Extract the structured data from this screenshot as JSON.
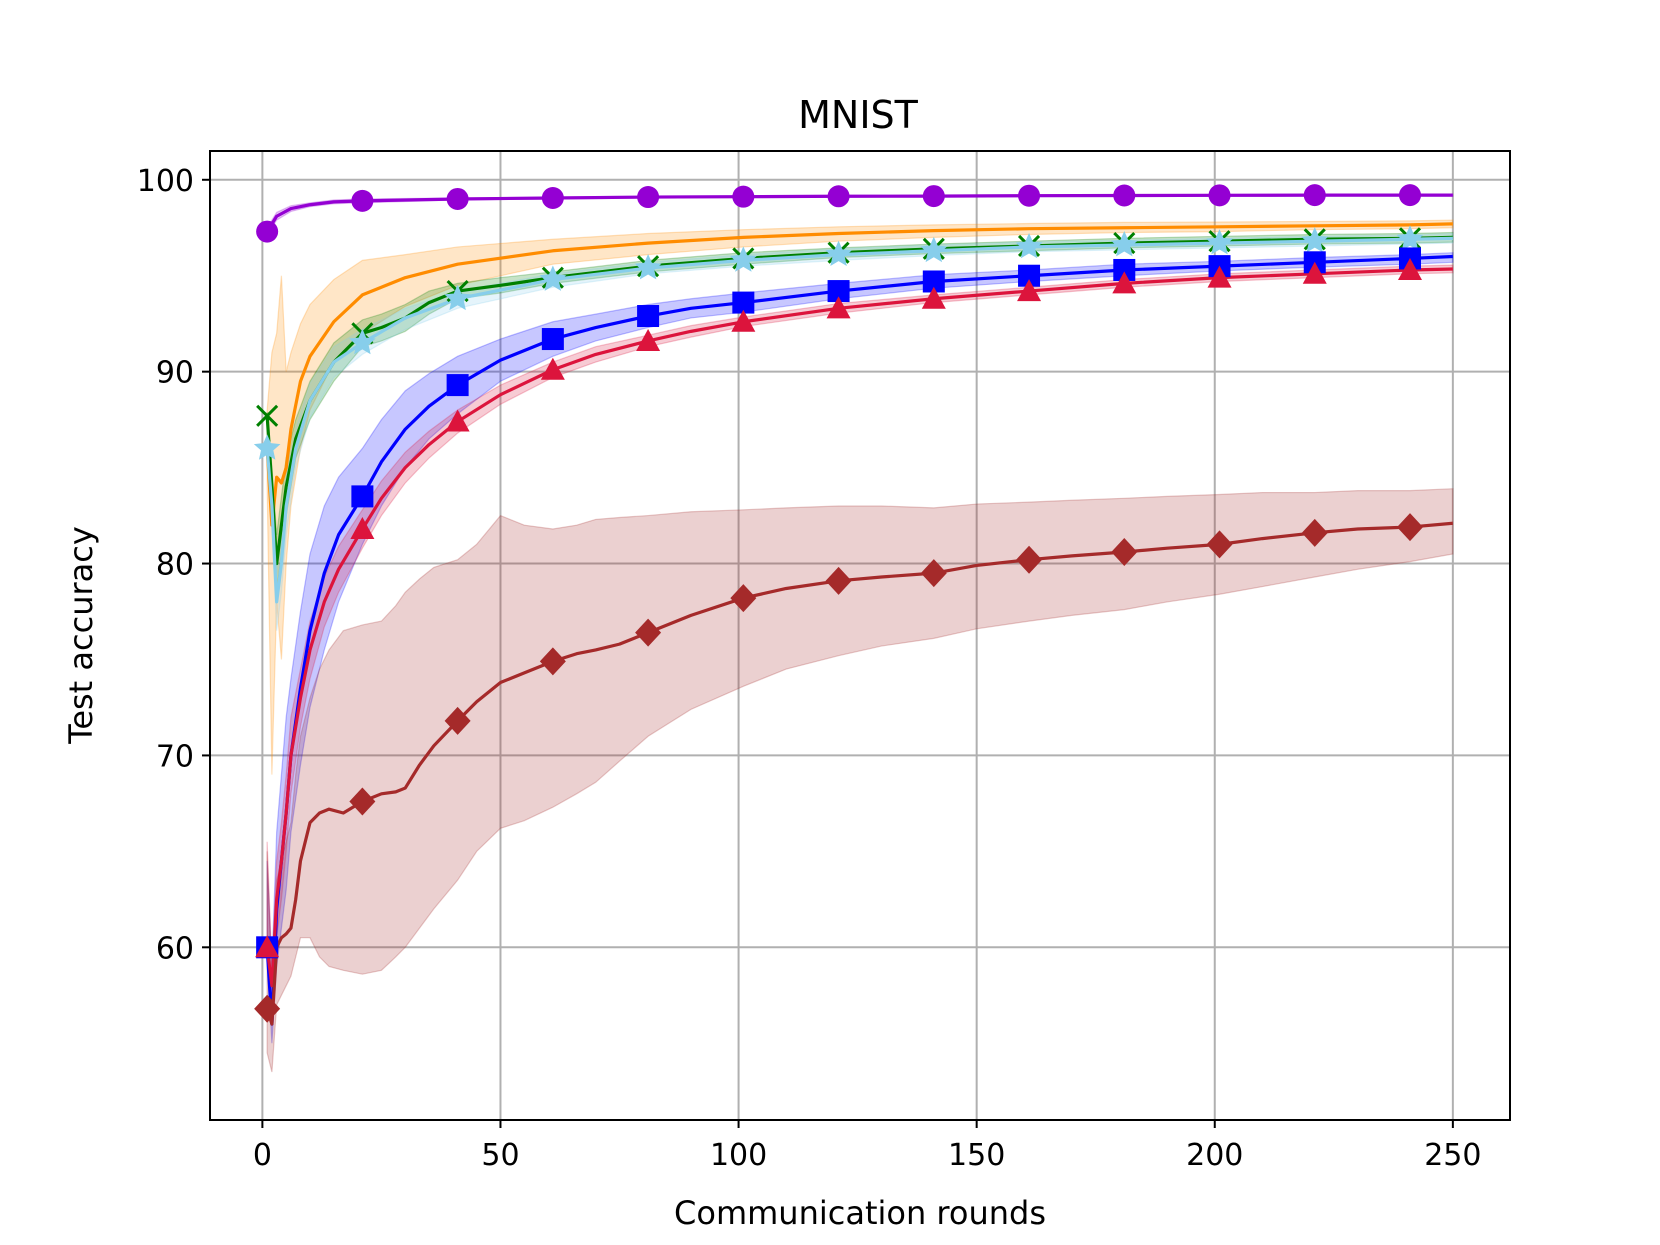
{
  "chart_data": {
    "type": "line",
    "title": "MNIST",
    "xlabel": "Communication rounds",
    "ylabel": "Test accuracy",
    "xlim": [
      -11,
      262
    ],
    "ylim": [
      51,
      101.5
    ],
    "grid": true,
    "x_ticks": [
      0,
      50,
      100,
      150,
      200,
      250
    ],
    "x_tick_labels": [
      "0",
      "50",
      "100",
      "150",
      "200",
      "250"
    ],
    "y_ticks": [
      60,
      70,
      80,
      90,
      100
    ],
    "y_tick_labels": [
      "60",
      "70",
      "80",
      "90",
      "100"
    ],
    "series": [
      {
        "name": "purple-circle",
        "color": "#9400d3",
        "marker": "circle",
        "x": [
          1,
          3,
          6,
          10,
          15,
          21,
          41,
          61,
          81,
          101,
          121,
          141,
          161,
          181,
          201,
          221,
          241,
          250
        ],
        "values": [
          97.3,
          98.1,
          98.5,
          98.7,
          98.85,
          98.9,
          99.0,
          99.05,
          99.1,
          99.12,
          99.14,
          99.15,
          99.17,
          99.18,
          99.19,
          99.2,
          99.2,
          99.2
        ],
        "band_low": [
          97.1,
          97.9,
          98.35,
          98.6,
          98.75,
          98.8,
          98.95,
          99.0,
          99.05,
          99.07,
          99.09,
          99.1,
          99.12,
          99.13,
          99.14,
          99.15,
          99.15,
          99.15
        ],
        "band_high": [
          97.5,
          98.3,
          98.65,
          98.8,
          98.95,
          99.0,
          99.05,
          99.1,
          99.15,
          99.17,
          99.19,
          99.2,
          99.22,
          99.23,
          99.24,
          99.25,
          99.25,
          99.25
        ],
        "marker_x": [
          1,
          21,
          41,
          61,
          81,
          101,
          121,
          141,
          161,
          181,
          201,
          221,
          241
        ]
      },
      {
        "name": "orange",
        "color": "#ff8c00",
        "marker": "none",
        "x": [
          1,
          2,
          3,
          4,
          5,
          6,
          8,
          10,
          15,
          21,
          30,
          41,
          61,
          81,
          101,
          121,
          141,
          161,
          181,
          201,
          221,
          241,
          250
        ],
        "values": [
          86,
          82,
          84.5,
          84.2,
          85,
          87,
          89.5,
          90.8,
          92.6,
          94.0,
          94.9,
          95.6,
          96.3,
          96.7,
          97.0,
          97.2,
          97.35,
          97.45,
          97.5,
          97.55,
          97.6,
          97.65,
          97.7
        ],
        "band_low": [
          84,
          69,
          78,
          75,
          80,
          83,
          86,
          88,
          90.5,
          92,
          93.4,
          94.5,
          95.6,
          96.1,
          96.5,
          96.8,
          97.0,
          97.15,
          97.25,
          97.3,
          97.4,
          97.45,
          97.5
        ],
        "band_high": [
          88,
          91,
          92,
          95,
          90,
          91,
          92.5,
          93.5,
          94.8,
          95.8,
          96.1,
          96.5,
          96.9,
          97.2,
          97.4,
          97.55,
          97.65,
          97.72,
          97.78,
          97.8,
          97.83,
          97.86,
          97.9
        ]
      },
      {
        "name": "green-x",
        "color": "#008000",
        "marker": "x",
        "x": [
          1,
          2,
          3,
          4,
          5,
          7,
          10,
          15,
          21,
          25,
          30,
          35,
          41,
          50,
          61,
          81,
          101,
          121,
          141,
          161,
          181,
          201,
          221,
          241,
          250
        ],
        "values": [
          87.7,
          84,
          80,
          82,
          84,
          86.5,
          88.5,
          90.5,
          92.0,
          92.3,
          92.8,
          93.6,
          94.2,
          94.5,
          94.9,
          95.5,
          95.9,
          96.2,
          96.4,
          96.55,
          96.7,
          96.8,
          96.9,
          96.95,
          97.0
        ],
        "band_low": [
          87.5,
          83,
          78.5,
          80.5,
          82.5,
          85.5,
          87.5,
          89.5,
          91.3,
          91.6,
          92.1,
          93.0,
          93.8,
          94.1,
          94.6,
          95.2,
          95.6,
          95.95,
          96.15,
          96.3,
          96.45,
          96.55,
          96.65,
          96.7,
          96.75
        ],
        "band_high": [
          87.9,
          85,
          81.5,
          83.5,
          85.5,
          87.5,
          89.5,
          91.5,
          92.7,
          93.0,
          93.5,
          94.2,
          94.6,
          94.9,
          95.2,
          95.8,
          96.2,
          96.45,
          96.65,
          96.8,
          96.95,
          97.05,
          97.15,
          97.2,
          97.25
        ],
        "marker_x": [
          1,
          21,
          41,
          61,
          81,
          101,
          121,
          141,
          161,
          181,
          201,
          221,
          241
        ]
      },
      {
        "name": "skyblue-star",
        "color": "#87ceeb",
        "marker": "star",
        "x": [
          1,
          2,
          3,
          4,
          5,
          7,
          10,
          15,
          21,
          30,
          41,
          61,
          81,
          101,
          121,
          141,
          161,
          181,
          201,
          221,
          241,
          250
        ],
        "values": [
          86.0,
          83,
          78,
          80,
          83,
          86,
          88.5,
          90.5,
          91.5,
          92.8,
          93.8,
          94.8,
          95.4,
          95.8,
          96.1,
          96.3,
          96.5,
          96.6,
          96.7,
          96.8,
          96.9,
          96.95
        ],
        "band_low": [
          85.7,
          82,
          76.5,
          78.5,
          81.5,
          85,
          87.6,
          89.7,
          90.9,
          92.2,
          93.3,
          94.4,
          95.1,
          95.5,
          95.8,
          96.05,
          96.25,
          96.35,
          96.45,
          96.55,
          96.65,
          96.7
        ],
        "band_high": [
          86.3,
          84,
          79.5,
          81.5,
          84.5,
          87,
          89.4,
          91.3,
          92.2,
          93.3,
          94.2,
          95.1,
          95.7,
          96.1,
          96.4,
          96.6,
          96.75,
          96.85,
          96.95,
          97.05,
          97.12,
          97.2
        ],
        "marker_x": [
          1,
          21,
          41,
          61,
          81,
          101,
          121,
          141,
          161,
          181,
          201,
          221,
          241
        ]
      },
      {
        "name": "blue-square",
        "color": "#0000ff",
        "marker": "square",
        "x": [
          1,
          2,
          3,
          4,
          5,
          6,
          8,
          10,
          13,
          16,
          21,
          25,
          30,
          35,
          41,
          50,
          61,
          70,
          81,
          90,
          101,
          121,
          141,
          161,
          181,
          201,
          221,
          241,
          250
        ],
        "values": [
          60.0,
          56.0,
          62.0,
          64.5,
          67,
          70,
          73.5,
          76.5,
          79.5,
          81.5,
          83.5,
          85.3,
          87.0,
          88.2,
          89.3,
          90.6,
          91.7,
          92.3,
          92.9,
          93.3,
          93.6,
          94.2,
          94.7,
          95.0,
          95.3,
          95.5,
          95.7,
          95.9,
          96.0
        ],
        "band_low": [
          59.5,
          55,
          59,
          61,
          63,
          66,
          69.5,
          72.5,
          75.5,
          78,
          81.0,
          83.0,
          85.0,
          86.5,
          87.8,
          89.5,
          90.8,
          91.6,
          92.3,
          92.8,
          93.1,
          93.8,
          94.35,
          94.7,
          95.0,
          95.25,
          95.45,
          95.6,
          95.7
        ],
        "band_high": [
          64.5,
          59,
          66,
          69,
          72,
          74,
          77.5,
          80.5,
          83,
          84.5,
          86.0,
          87.5,
          89.0,
          89.9,
          90.8,
          91.7,
          92.6,
          93.0,
          93.5,
          93.8,
          94.1,
          94.6,
          95.05,
          95.3,
          95.6,
          95.75,
          95.95,
          96.1,
          96.2
        ],
        "marker_x": [
          1,
          21,
          41,
          61,
          81,
          101,
          121,
          141,
          161,
          181,
          201,
          221,
          241
        ]
      },
      {
        "name": "crimson-triangle",
        "color": "#dc143c",
        "marker": "triangle",
        "x": [
          1,
          2,
          3,
          4,
          5,
          6,
          8,
          10,
          13,
          16,
          21,
          25,
          30,
          35,
          41,
          50,
          61,
          70,
          81,
          90,
          101,
          121,
          141,
          161,
          181,
          201,
          221,
          241,
          250
        ],
        "values": [
          60.0,
          58.0,
          62.5,
          64.5,
          67,
          70,
          73,
          75.5,
          78,
          79.7,
          81.8,
          83.4,
          85.0,
          86.2,
          87.4,
          88.8,
          90.1,
          90.9,
          91.6,
          92.1,
          92.6,
          93.3,
          93.8,
          94.2,
          94.6,
          94.9,
          95.1,
          95.3,
          95.35
        ],
        "band_low": [
          59.5,
          57,
          60.5,
          62.5,
          65,
          68,
          71.5,
          74,
          76.7,
          78.5,
          80.8,
          82.5,
          84.2,
          85.5,
          86.8,
          88.3,
          89.7,
          90.5,
          91.3,
          91.8,
          92.35,
          93.05,
          93.6,
          94.0,
          94.4,
          94.7,
          94.9,
          95.1,
          95.15
        ],
        "band_high": [
          65.5,
          59,
          64.5,
          66.5,
          69,
          72,
          74.5,
          77,
          79.3,
          80.9,
          82.8,
          84.3,
          85.8,
          86.9,
          88.0,
          89.3,
          90.5,
          91.3,
          91.9,
          92.4,
          92.85,
          93.55,
          94.0,
          94.4,
          94.8,
          95.1,
          95.3,
          95.5,
          95.55
        ],
        "marker_x": [
          1,
          21,
          41,
          61,
          81,
          101,
          121,
          141,
          161,
          181,
          201,
          221,
          241
        ]
      },
      {
        "name": "brown-diamond",
        "color": "#a52a2a",
        "marker": "diamond",
        "x": [
          1,
          2,
          3,
          4,
          5,
          6,
          7,
          8,
          10,
          12,
          14,
          17,
          21,
          25,
          28,
          30,
          33,
          36,
          41,
          45,
          50,
          55,
          61,
          66,
          70,
          75,
          81,
          90,
          101,
          110,
          121,
          130,
          141,
          150,
          161,
          170,
          181,
          190,
          201,
          210,
          221,
          230,
          241,
          250
        ],
        "values": [
          56.8,
          56.0,
          60.0,
          60.5,
          60.7,
          61.0,
          62.5,
          64.5,
          66.5,
          67.0,
          67.2,
          67.0,
          67.6,
          68.0,
          68.1,
          68.3,
          69.5,
          70.5,
          71.8,
          72.8,
          73.8,
          74.3,
          74.9,
          75.3,
          75.5,
          75.8,
          76.4,
          77.3,
          78.2,
          78.7,
          79.1,
          79.3,
          79.5,
          79.9,
          80.2,
          80.4,
          80.6,
          80.8,
          81.0,
          81.3,
          81.6,
          81.8,
          81.9,
          82.1
        ],
        "band_low": [
          54.5,
          53.5,
          57,
          57.5,
          58,
          58.5,
          59.5,
          60.5,
          60.5,
          59.5,
          59.0,
          58.8,
          58.6,
          58.8,
          59.5,
          60.0,
          61.0,
          62.0,
          63.5,
          65.0,
          66.2,
          66.6,
          67.3,
          68.0,
          68.6,
          69.7,
          71.0,
          72.4,
          73.6,
          74.5,
          75.2,
          75.7,
          76.1,
          76.6,
          77.0,
          77.3,
          77.6,
          78.0,
          78.4,
          78.8,
          79.3,
          79.7,
          80.1,
          80.5
        ],
        "band_high": [
          65,
          58,
          63.5,
          64.5,
          65.5,
          66.5,
          69,
          71,
          73.0,
          74.5,
          75.5,
          76.5,
          76.8,
          77.0,
          77.8,
          78.5,
          79.2,
          79.8,
          80.2,
          81.0,
          82.5,
          82.0,
          81.8,
          82.0,
          82.3,
          82.4,
          82.5,
          82.7,
          82.8,
          82.9,
          83.0,
          83.0,
          82.9,
          83.1,
          83.2,
          83.3,
          83.4,
          83.5,
          83.6,
          83.7,
          83.7,
          83.8,
          83.8,
          83.9
        ],
        "marker_x": [
          1,
          21,
          41,
          61,
          81,
          101,
          121,
          141,
          161,
          181,
          201,
          221,
          241
        ]
      }
    ]
  }
}
